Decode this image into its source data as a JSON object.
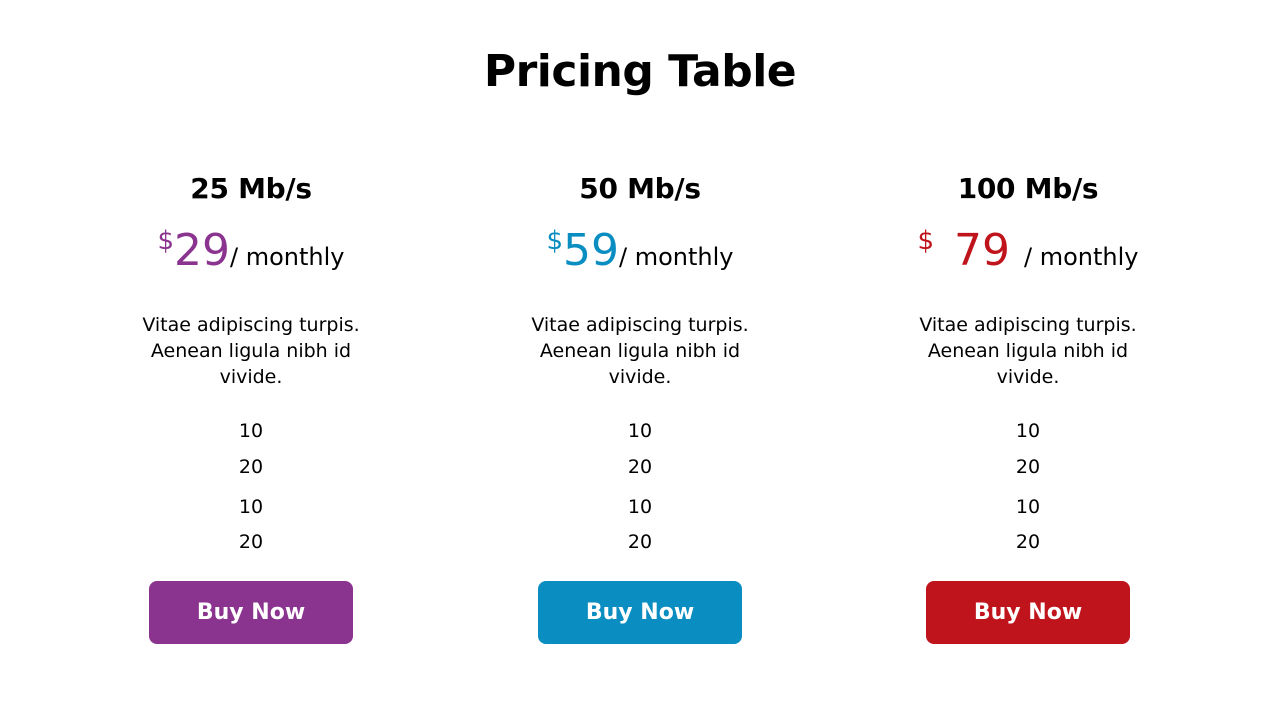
{
  "title": "Pricing Table",
  "plans": [
    {
      "speed": "25 Mb/s",
      "currency": "$",
      "price": "29",
      "period": "/ monthly",
      "description": "Vitae adipiscing turpis. Aenean ligula nibh id vivide.",
      "features": [
        "10",
        "20",
        "10",
        "20"
      ],
      "button_label": "Buy Now",
      "accent_color": "#8B348F"
    },
    {
      "speed": "50 Mb/s",
      "currency": "$",
      "price": "59",
      "period": "/ monthly",
      "description": "Vitae adipiscing turpis. Aenean ligula nibh id vivide.",
      "features": [
        "10",
        "20",
        "10",
        "20"
      ],
      "button_label": "Buy Now",
      "accent_color": "#0A8DC0"
    },
    {
      "speed": "100 Mb/s",
      "currency": "$",
      "price": "79",
      "period": "/ monthly",
      "description": "Vitae adipiscing turpis. Aenean ligula nibh id vivide.",
      "features": [
        "10",
        "20",
        "10",
        "20"
      ],
      "button_label": "Buy Now",
      "accent_color": "#C0141C"
    }
  ]
}
